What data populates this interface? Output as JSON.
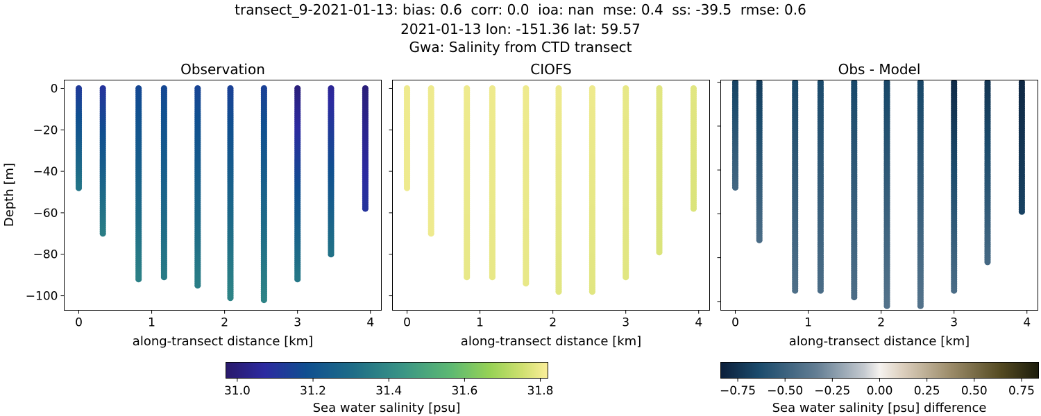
{
  "figure": {
    "title_lines": [
      "transect_9-2021-01-13: bias: 0.6  corr: 0.0  ioa: nan  mse: 0.4  ss: -39.5  rmse: 0.6",
      "2021-01-13 lon: -151.36 lat: 59.57",
      "Gwa: Salinity from CTD transect"
    ]
  },
  "panels": [
    {
      "title": "Observation",
      "xlabel": "along-transect distance [km]",
      "ylabel": "Depth [m]"
    },
    {
      "title": "CIOFS",
      "xlabel": "along-transect distance [km]",
      "ylabel": ""
    },
    {
      "title": "Obs - Model",
      "xlabel": "along-transect distance [km]",
      "ylabel": ""
    }
  ],
  "colorbars": [
    {
      "label": "Sea water salinity [psu]",
      "ticks": [
        "31.0",
        "31.2",
        "31.4",
        "31.6",
        "31.8"
      ],
      "range": [
        30.97,
        31.82
      ],
      "colormap": "haline"
    },
    {
      "label": "Sea water salinity [psu] difference",
      "ticks": [
        "−0.75",
        "−0.50",
        "−0.25",
        "0.00",
        "0.25",
        "0.50",
        "0.75"
      ],
      "range": [
        -0.84,
        0.84
      ],
      "colormap": "diff"
    }
  ],
  "chart_data": [
    {
      "type": "scatter",
      "title": "Observation",
      "xlabel": "along-transect distance [km]",
      "ylabel": "Depth [m]",
      "xlim": [
        -0.2,
        4.15
      ],
      "ylim": [
        -107,
        4
      ],
      "xticks": [
        "0",
        "1",
        "2",
        "3",
        "4"
      ],
      "yticks": [
        "0",
        "−20",
        "−40",
        "−60",
        "−80",
        "−100"
      ],
      "stations_km": [
        0.0,
        0.33,
        0.82,
        1.17,
        1.63,
        2.08,
        2.54,
        3.0,
        3.46,
        3.93
      ],
      "station_max_depth_m": [
        48,
        70,
        92,
        91,
        95,
        101,
        102,
        92,
        80,
        58
      ],
      "surface_salinity_psu": [
        31.12,
        31.1,
        31.16,
        31.16,
        31.15,
        31.14,
        31.14,
        31.0,
        31.05,
        31.0
      ],
      "bottom_salinity_psu": [
        31.33,
        31.36,
        31.37,
        31.35,
        31.36,
        31.38,
        31.38,
        31.34,
        31.32,
        31.1
      ]
    },
    {
      "type": "scatter",
      "title": "CIOFS",
      "xlabel": "along-transect distance [km]",
      "xlim": [
        -0.2,
        4.15
      ],
      "ylim": [
        -107,
        4
      ],
      "xticks": [
        "0",
        "1",
        "2",
        "3",
        "4"
      ],
      "stations_km": [
        0.0,
        0.33,
        0.82,
        1.17,
        1.63,
        2.08,
        2.54,
        3.0,
        3.46,
        3.93
      ],
      "station_max_depth_m": [
        48,
        70,
        91,
        91,
        94,
        98,
        98,
        91,
        79,
        58
      ],
      "surface_salinity_psu": [
        31.8,
        31.8,
        31.8,
        31.8,
        31.8,
        31.8,
        31.8,
        31.79,
        31.78,
        31.78
      ],
      "bottom_salinity_psu": [
        31.8,
        31.8,
        31.79,
        31.79,
        31.79,
        31.78,
        31.78,
        31.78,
        31.77,
        31.77
      ]
    },
    {
      "type": "scatter",
      "title": "Obs - Model",
      "xlabel": "along-transect distance [km]",
      "xlim": [
        -0.2,
        4.15
      ],
      "ylim": [
        -104,
        1
      ],
      "xticks": [
        "0",
        "1",
        "2",
        "3",
        "4"
      ],
      "stations_km": [
        0.0,
        0.33,
        0.82,
        1.17,
        1.63,
        2.08,
        2.54,
        3.0,
        3.46,
        3.93
      ],
      "station_max_depth_m": [
        48,
        72,
        95,
        95,
        98,
        102,
        102,
        95,
        82,
        59
      ],
      "surface_diff_psu": [
        -0.68,
        -0.7,
        -0.64,
        -0.64,
        -0.65,
        -0.66,
        -0.66,
        -0.79,
        -0.74,
        -0.8
      ],
      "bottom_diff_psu": [
        -0.47,
        -0.44,
        -0.42,
        -0.44,
        -0.43,
        -0.4,
        -0.4,
        -0.44,
        -0.46,
        -0.68
      ]
    }
  ]
}
